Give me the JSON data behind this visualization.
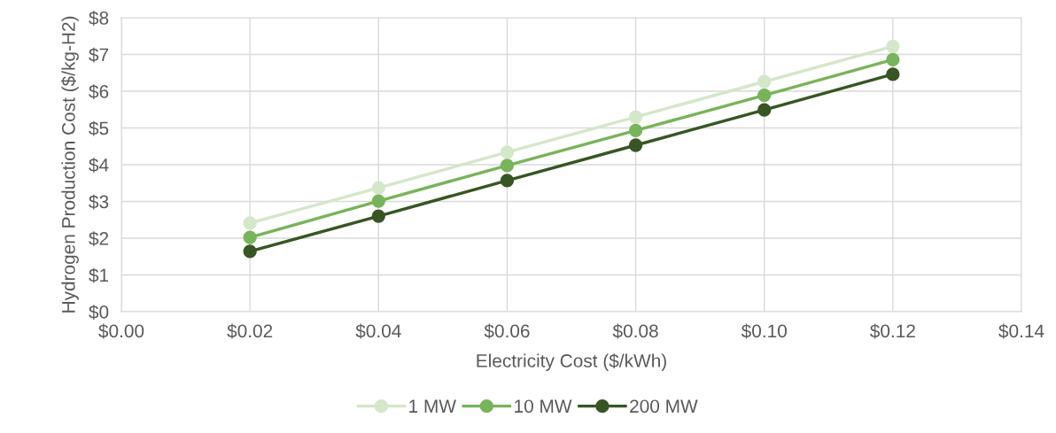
{
  "chart_data": {
    "type": "line",
    "xlabel": "Electricity Cost ($/kWh)",
    "ylabel": "Hydrogen Production Cost ($/kg-H2)",
    "x": [
      0.02,
      0.04,
      0.06,
      0.08,
      0.1,
      0.12
    ],
    "series": [
      {
        "name": "1 MW",
        "color": "#d4e7c9",
        "values": [
          2.41,
          3.37,
          4.34,
          5.3,
          6.26,
          7.22
        ]
      },
      {
        "name": "10 MW",
        "color": "#78b45a",
        "values": [
          2.02,
          3.01,
          3.98,
          4.93,
          5.89,
          6.86
        ]
      },
      {
        "name": "200 MW",
        "color": "#375623",
        "values": [
          1.64,
          2.6,
          3.57,
          4.53,
          5.49,
          6.46
        ]
      }
    ],
    "xlim": [
      0,
      0.14
    ],
    "xticks": [
      {
        "value": 0,
        "label": "$0.00"
      },
      {
        "value": 0.02,
        "label": "$0.02"
      },
      {
        "value": 0.04,
        "label": "$0.04"
      },
      {
        "value": 0.06,
        "label": "$0.06"
      },
      {
        "value": 0.08,
        "label": "$0.08"
      },
      {
        "value": 0.1,
        "label": "$0.10"
      },
      {
        "value": 0.12,
        "label": "$0.12"
      },
      {
        "value": 0.14,
        "label": "$0.14"
      }
    ],
    "ylim": [
      0,
      8
    ],
    "yticks": [
      {
        "value": 0,
        "label": "$0"
      },
      {
        "value": 1,
        "label": "$1"
      },
      {
        "value": 2,
        "label": "$2"
      },
      {
        "value": 3,
        "label": "$3"
      },
      {
        "value": 4,
        "label": "$4"
      },
      {
        "value": 5,
        "label": "$5"
      },
      {
        "value": 6,
        "label": "$6"
      },
      {
        "value": 7,
        "label": "$7"
      },
      {
        "value": 8,
        "label": "$8"
      }
    ],
    "grid": true,
    "legend": "bottom",
    "marker": "circle",
    "line_style": "solid"
  }
}
